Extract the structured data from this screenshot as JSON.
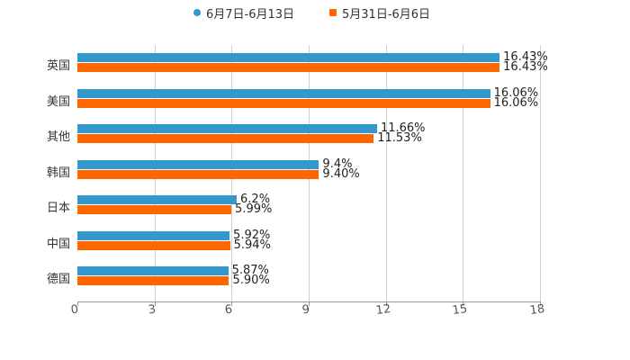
{
  "colors": {
    "series1": "#3399cc",
    "series2": "#ff6600"
  },
  "legend": [
    {
      "label": "6月7日-6月13日",
      "color": "#3399cc",
      "shape": "circle"
    },
    {
      "label": "5月31日-6月6日",
      "color": "#ff6600",
      "shape": "square"
    }
  ],
  "axis": {
    "ticks": [
      "0",
      "3",
      "6",
      "9",
      "12",
      "15",
      "18"
    ]
  },
  "rows": [
    {
      "category": "英国",
      "v1": "16.43%",
      "v2": "16.43%"
    },
    {
      "category": "美国",
      "v1": "16.06%",
      "v2": "16.06%"
    },
    {
      "category": "其他",
      "v1": "11.66%",
      "v2": "11.53%"
    },
    {
      "category": "韩国",
      "v1": "9.4%",
      "v2": "9.40%"
    },
    {
      "category": "日本",
      "v1": "6.2%",
      "v2": "5.99%"
    },
    {
      "category": "中国",
      "v1": "5.92%",
      "v2": "5.94%"
    },
    {
      "category": "德国",
      "v1": "5.87%",
      "v2": "5.90%"
    }
  ],
  "chart_data": {
    "type": "bar",
    "orientation": "horizontal",
    "title": "",
    "xlabel": "",
    "ylabel": "",
    "categories": [
      "英国",
      "美国",
      "其他",
      "韩国",
      "日本",
      "中国",
      "德国"
    ],
    "series": [
      {
        "name": "6月7日-6月13日",
        "color": "#3399cc",
        "values": [
          16.43,
          16.06,
          11.66,
          9.4,
          6.2,
          5.92,
          5.87
        ]
      },
      {
        "name": "5月31日-6月6日",
        "color": "#ff6600",
        "values": [
          16.43,
          16.06,
          11.53,
          9.4,
          5.99,
          5.94,
          5.9
        ]
      }
    ],
    "data_labels": [
      [
        "16.43%",
        "16.06%",
        "11.66%",
        "9.4%",
        "6.2%",
        "5.92%",
        "5.87%"
      ],
      [
        "16.43%",
        "16.06%",
        "11.53%",
        "9.40%",
        "5.99%",
        "5.94%",
        "5.90%"
      ]
    ],
    "xlim": [
      0,
      18
    ],
    "xticks": [
      0,
      3,
      6,
      9,
      12,
      15,
      18
    ],
    "grid": "vertical",
    "legend_position": "top"
  }
}
